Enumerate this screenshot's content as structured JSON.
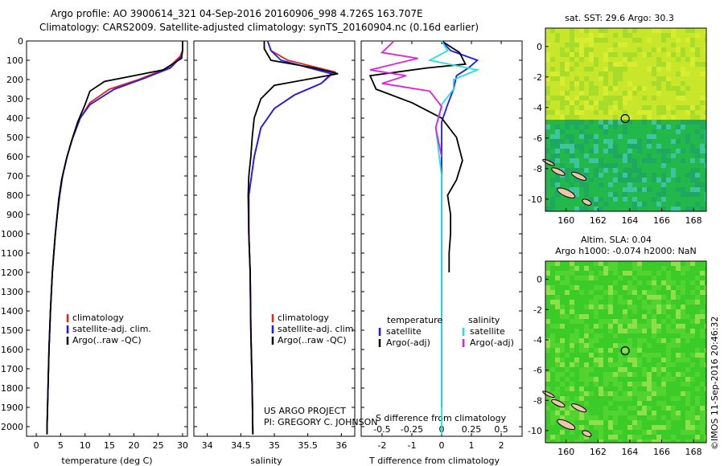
{
  "header": {
    "line1": "Argo profile: AO 3900614_321 04-Sep-2016 20160906_998 4.726S 163.707E",
    "line2": "Climatology: CARS2009. Satellite-adjusted climatology: synTS_20160904.nc (0.16d earlier)"
  },
  "colors": {
    "climatology": "#e8231d",
    "satellite": "#1a1aff",
    "argo": "#000000",
    "salinity_sat": "#22e0e0",
    "salinity_argo": "#e020e0"
  },
  "pressure_ticks": [
    "0",
    "100",
    "200",
    "300",
    "400",
    "500",
    "600",
    "700",
    "800",
    "900",
    "1000",
    "1100",
    "1200",
    "1300",
    "1400",
    "1500",
    "1600",
    "1700",
    "1800",
    "1900",
    "2000"
  ],
  "chart_data": [
    {
      "type": "line",
      "xlabel": "temperature (deg C)",
      "xlim": [
        -2,
        31
      ],
      "xticks": [
        "0",
        "5",
        "10",
        "15",
        "20",
        "25",
        "30"
      ],
      "ylim": [
        2050,
        0
      ],
      "legend": [
        "climatology",
        "satellite-adj. clim.",
        "Argo(..raw -QC)"
      ],
      "series": [
        {
          "name": "climatology",
          "values": [
            [
              30,
              0
            ],
            [
              30,
              50
            ],
            [
              29.5,
              80
            ],
            [
              27,
              140
            ],
            [
              21,
              200
            ],
            [
              15,
              250
            ],
            [
              11,
              320
            ],
            [
              9,
              400
            ],
            [
              7.5,
              500
            ],
            [
              6.3,
              600
            ],
            [
              5.4,
              700
            ],
            [
              4.8,
              800
            ],
            [
              4.3,
              900
            ],
            [
              3.9,
              1000
            ],
            [
              3.6,
              1100
            ],
            [
              3.3,
              1200
            ],
            [
              3.1,
              1300
            ],
            [
              2.9,
              1400
            ],
            [
              2.75,
              1500
            ],
            [
              2.6,
              1600
            ],
            [
              2.5,
              1700
            ],
            [
              2.4,
              1800
            ],
            [
              2.3,
              1900
            ],
            [
              2.2,
              2000
            ],
            [
              2.2,
              2040
            ]
          ]
        },
        {
          "name": "satellite-adj. clim.",
          "values": [
            [
              30,
              0
            ],
            [
              30,
              50
            ],
            [
              29.8,
              80
            ],
            [
              27.5,
              140
            ],
            [
              22,
              195
            ],
            [
              16,
              250
            ],
            [
              11,
              330
            ],
            [
              9,
              400
            ],
            [
              7.5,
              500
            ],
            [
              6.3,
              600
            ],
            [
              5.4,
              700
            ],
            [
              4.8,
              800
            ],
            [
              4.3,
              900
            ],
            [
              3.9,
              1000
            ],
            [
              3.6,
              1100
            ],
            [
              3.3,
              1200
            ],
            [
              3.1,
              1300
            ],
            [
              2.9,
              1400
            ],
            [
              2.75,
              1500
            ],
            [
              2.6,
              1600
            ],
            [
              2.5,
              1700
            ],
            [
              2.4,
              1800
            ],
            [
              2.3,
              1900
            ],
            [
              2.2,
              2000
            ],
            [
              2.2,
              2040
            ]
          ]
        },
        {
          "name": "Argo(..raw -QC)",
          "values": [
            [
              30,
              0
            ],
            [
              30,
              50
            ],
            [
              29.8,
              90
            ],
            [
              26,
              150
            ],
            [
              20,
              180
            ],
            [
              14,
              210
            ],
            [
              11,
              260
            ],
            [
              10,
              330
            ],
            [
              8.5,
              420
            ],
            [
              7.2,
              520
            ],
            [
              6.1,
              620
            ],
            [
              5.2,
              720
            ],
            [
              4.6,
              820
            ],
            [
              4.3,
              900
            ],
            [
              3.9,
              1000
            ],
            [
              3.6,
              1100
            ],
            [
              3.3,
              1200
            ],
            [
              3.1,
              1300
            ],
            [
              2.9,
              1400
            ],
            [
              2.75,
              1500
            ],
            [
              2.6,
              1600
            ],
            [
              2.5,
              1700
            ],
            [
              2.4,
              1800
            ],
            [
              2.3,
              1900
            ],
            [
              2.2,
              2000
            ],
            [
              2.2,
              2040
            ]
          ]
        }
      ]
    },
    {
      "type": "line",
      "xlabel": "salinity",
      "xlim": [
        33.8,
        36.2
      ],
      "xticks": [
        "34",
        "34.5",
        "35",
        "35.5",
        "36"
      ],
      "ylim": [
        2050,
        0
      ],
      "legend": [
        "climatology",
        "satellite-adj. clim.",
        "Argo(..raw -QC)"
      ],
      "series": [
        {
          "name": "climatology",
          "values": [
            [
              34.9,
              0
            ],
            [
              34.95,
              50
            ],
            [
              35.2,
              100
            ],
            [
              35.9,
              160
            ],
            [
              35.7,
              220
            ],
            [
              35.3,
              280
            ],
            [
              35.0,
              350
            ],
            [
              34.8,
              450
            ],
            [
              34.7,
              600
            ],
            [
              34.62,
              800
            ],
            [
              34.62,
              1000
            ],
            [
              34.64,
              1200
            ],
            [
              34.65,
              1500
            ],
            [
              34.67,
              1800
            ],
            [
              34.68,
              2040
            ]
          ]
        },
        {
          "name": "satellite-adj. clim.",
          "values": [
            [
              34.9,
              0
            ],
            [
              34.95,
              50
            ],
            [
              35.1,
              100
            ],
            [
              35.85,
              170
            ],
            [
              35.7,
              220
            ],
            [
              35.3,
              280
            ],
            [
              35.0,
              350
            ],
            [
              34.8,
              450
            ],
            [
              34.7,
              600
            ],
            [
              34.62,
              800
            ],
            [
              34.62,
              1000
            ],
            [
              34.64,
              1200
            ],
            [
              34.65,
              1500
            ],
            [
              34.67,
              1800
            ],
            [
              34.68,
              2040
            ]
          ]
        },
        {
          "name": "Argo(..raw -QC)",
          "values": [
            [
              34.85,
              0
            ],
            [
              34.85,
              40
            ],
            [
              34.95,
              100
            ],
            [
              35.6,
              140
            ],
            [
              35.95,
              170
            ],
            [
              35.0,
              230
            ],
            [
              34.8,
              300
            ],
            [
              34.7,
              400
            ],
            [
              34.67,
              500
            ],
            [
              34.65,
              600
            ],
            [
              34.62,
              700
            ],
            [
              34.61,
              800
            ],
            [
              34.62,
              1000
            ],
            [
              34.64,
              1200
            ],
            [
              34.65,
              1500
            ],
            [
              34.67,
              1800
            ],
            [
              34.68,
              2040
            ]
          ]
        }
      ]
    },
    {
      "type": "line",
      "xlabel": "T difference from climatology",
      "xlabel2": "S difference from climatology",
      "xticks_t": [
        "-2",
        "-1",
        "0",
        "1",
        "2"
      ],
      "xticks_s": [
        "-0.5",
        "-0.25",
        "0",
        "0.25",
        "0.5"
      ],
      "xlim": [
        -2.7,
        2.7
      ],
      "ylim": [
        2050,
        0
      ],
      "legend_headers": [
        "temperature",
        "salinity"
      ],
      "legend": [
        "satellite",
        "Argo(-adj)",
        "satellite",
        "Argo(-adj)"
      ],
      "series": [
        {
          "name": "satellite",
          "kind": "T",
          "values": [
            [
              0,
              0
            ],
            [
              0.3,
              50
            ],
            [
              1.2,
              100
            ],
            [
              0.9,
              140
            ],
            [
              0.5,
              180
            ],
            [
              0.4,
              250
            ],
            [
              0.2,
              330
            ],
            [
              0,
              420
            ],
            [
              0,
              600
            ],
            [
              0,
              900
            ],
            [
              0,
              1200
            ],
            [
              0,
              1500
            ],
            [
              0,
              1800
            ],
            [
              0,
              1900
            ]
          ]
        },
        {
          "name": "Argo(-adj)",
          "kind": "T",
          "values": [
            [
              0,
              0
            ],
            [
              0.6,
              60
            ],
            [
              0.8,
              120
            ],
            [
              -0.5,
              140
            ],
            [
              -2.4,
              180
            ],
            [
              -2.2,
              250
            ],
            [
              -1.0,
              320
            ],
            [
              0,
              400
            ],
            [
              0.5,
              500
            ],
            [
              0.7,
              620
            ],
            [
              0.5,
              720
            ],
            [
              0.2,
              800
            ],
            [
              0.3,
              900
            ],
            [
              0.3,
              1000
            ],
            [
              0.25,
              1100
            ],
            [
              0.25,
              1200
            ]
          ]
        },
        {
          "name": "satellite",
          "kind": "S",
          "values": [
            [
              0,
              0
            ],
            [
              0.05,
              50
            ],
            [
              -0.1,
              100
            ],
            [
              0.3,
              150
            ],
            [
              0.1,
              200
            ],
            [
              0.1,
              250
            ],
            [
              0,
              330
            ],
            [
              -0.05,
              450
            ],
            [
              0,
              700
            ],
            [
              0,
              1000
            ],
            [
              0,
              1500
            ],
            [
              0,
              2040
            ]
          ]
        },
        {
          "name": "Argo(-adj)",
          "kind": "S",
          "values": [
            [
              -0.4,
              0
            ],
            [
              -0.5,
              60
            ],
            [
              -0.2,
              90
            ],
            [
              -0.6,
              150
            ],
            [
              -0.3,
              180
            ],
            [
              -0.5,
              220
            ],
            [
              -0.1,
              260
            ],
            [
              0,
              340
            ],
            [
              -0.05,
              450
            ],
            [
              0,
              600
            ]
          ]
        }
      ]
    },
    {
      "type": "heatmap",
      "title": "sat. SST: 29.6  Argo: 30.3",
      "xticks": [
        "160",
        "162",
        "164",
        "166",
        "168"
      ],
      "yticks": [
        "0",
        "-2",
        "-4",
        "-6",
        "-8",
        "-10"
      ],
      "xlim": [
        158.7,
        168.8
      ],
      "ylim": [
        -10.8,
        1.2
      ],
      "marker": [
        163.707,
        -4.726
      ]
    },
    {
      "type": "heatmap",
      "title": "Altim. SLA: 0.04",
      "subtitle": "Argo h1000: -0.074  h2000: NaN",
      "xticks": [
        "160",
        "162",
        "164",
        "166",
        "168"
      ],
      "yticks": [
        "0",
        "-2",
        "-4",
        "-6",
        "-8",
        "-10"
      ],
      "xlim": [
        158.7,
        168.8
      ],
      "ylim": [
        -10.8,
        1.2
      ],
      "marker": [
        163.707,
        -4.726
      ]
    }
  ],
  "footer": {
    "project": "US ARGO PROJECT",
    "pi": "PI: GREGORY C. JOHNSON",
    "stamp": "©IMOS 11-Sep-2016 20:46:32"
  }
}
